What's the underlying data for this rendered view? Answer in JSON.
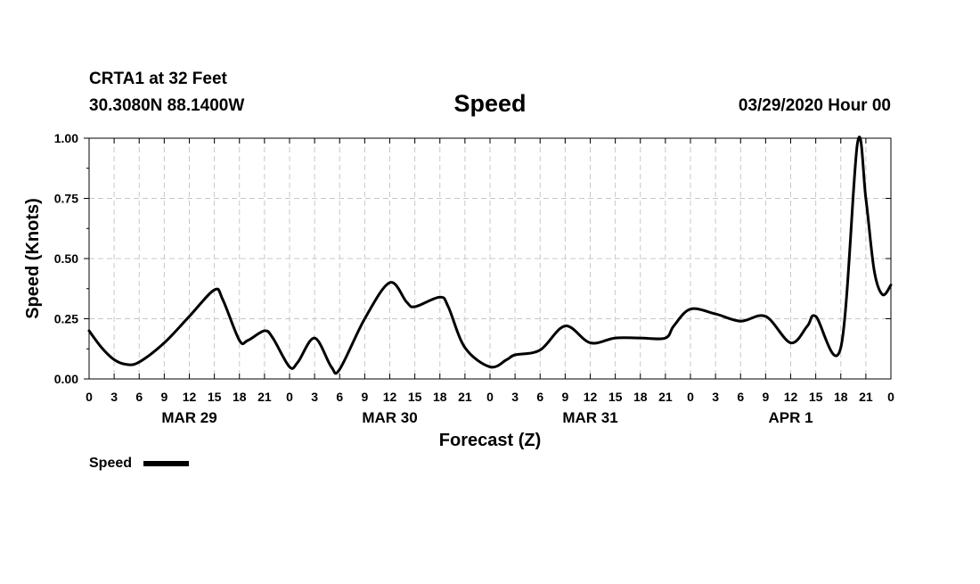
{
  "header": {
    "station_name": "CRTA1 at 32 Feet",
    "coordinates": "30.3080N 88.1400W",
    "title": "Speed",
    "run_time": "03/29/2020 Hour 00"
  },
  "legend": {
    "label": "Speed",
    "placement": "bottom-left"
  },
  "chart_data": {
    "type": "line",
    "title": "Speed",
    "xlabel": "Forecast (Z)",
    "ylabel": "Speed (Knots)",
    "xlim": [
      0,
      96
    ],
    "ylim": [
      0,
      1.0
    ],
    "grid": true,
    "x_tick_labels": [
      "0",
      "3",
      "6",
      "9",
      "12",
      "15",
      "18",
      "21",
      "0",
      "3",
      "6",
      "9",
      "12",
      "15",
      "18",
      "21",
      "0",
      "3",
      "6",
      "9",
      "12",
      "15",
      "18",
      "21",
      "0",
      "3",
      "6",
      "9",
      "12",
      "15",
      "18",
      "21",
      "0"
    ],
    "y_tick_labels": [
      "0.00",
      "0.25",
      "0.50",
      "0.75",
      "1.00"
    ],
    "y_tick_values": [
      0,
      0.25,
      0.5,
      0.75,
      1.0
    ],
    "day_labels": [
      "MAR 29",
      "MAR 30",
      "MAR 31",
      "APR 1"
    ],
    "series": [
      {
        "name": "Speed",
        "color": "#000000",
        "x": [
          0,
          1.5,
          3,
          4.5,
          6,
          9,
          12,
          15,
          16,
          18,
          19,
          21,
          22,
          24,
          25,
          27,
          29,
          30,
          33,
          36,
          38,
          39,
          42,
          43,
          45,
          48,
          50,
          51,
          54,
          57,
          60,
          63,
          66,
          69,
          70,
          72,
          75,
          78,
          81,
          84,
          86,
          87,
          90,
          92,
          93,
          94,
          95,
          96
        ],
        "y": [
          0.2,
          0.13,
          0.08,
          0.06,
          0.07,
          0.15,
          0.26,
          0.37,
          0.33,
          0.16,
          0.16,
          0.2,
          0.17,
          0.05,
          0.07,
          0.17,
          0.05,
          0.04,
          0.25,
          0.4,
          0.32,
          0.3,
          0.34,
          0.3,
          0.13,
          0.05,
          0.08,
          0.1,
          0.12,
          0.22,
          0.15,
          0.17,
          0.17,
          0.17,
          0.22,
          0.29,
          0.27,
          0.24,
          0.26,
          0.15,
          0.22,
          0.26,
          0.13,
          0.98,
          0.75,
          0.45,
          0.35,
          0.39
        ]
      }
    ]
  }
}
